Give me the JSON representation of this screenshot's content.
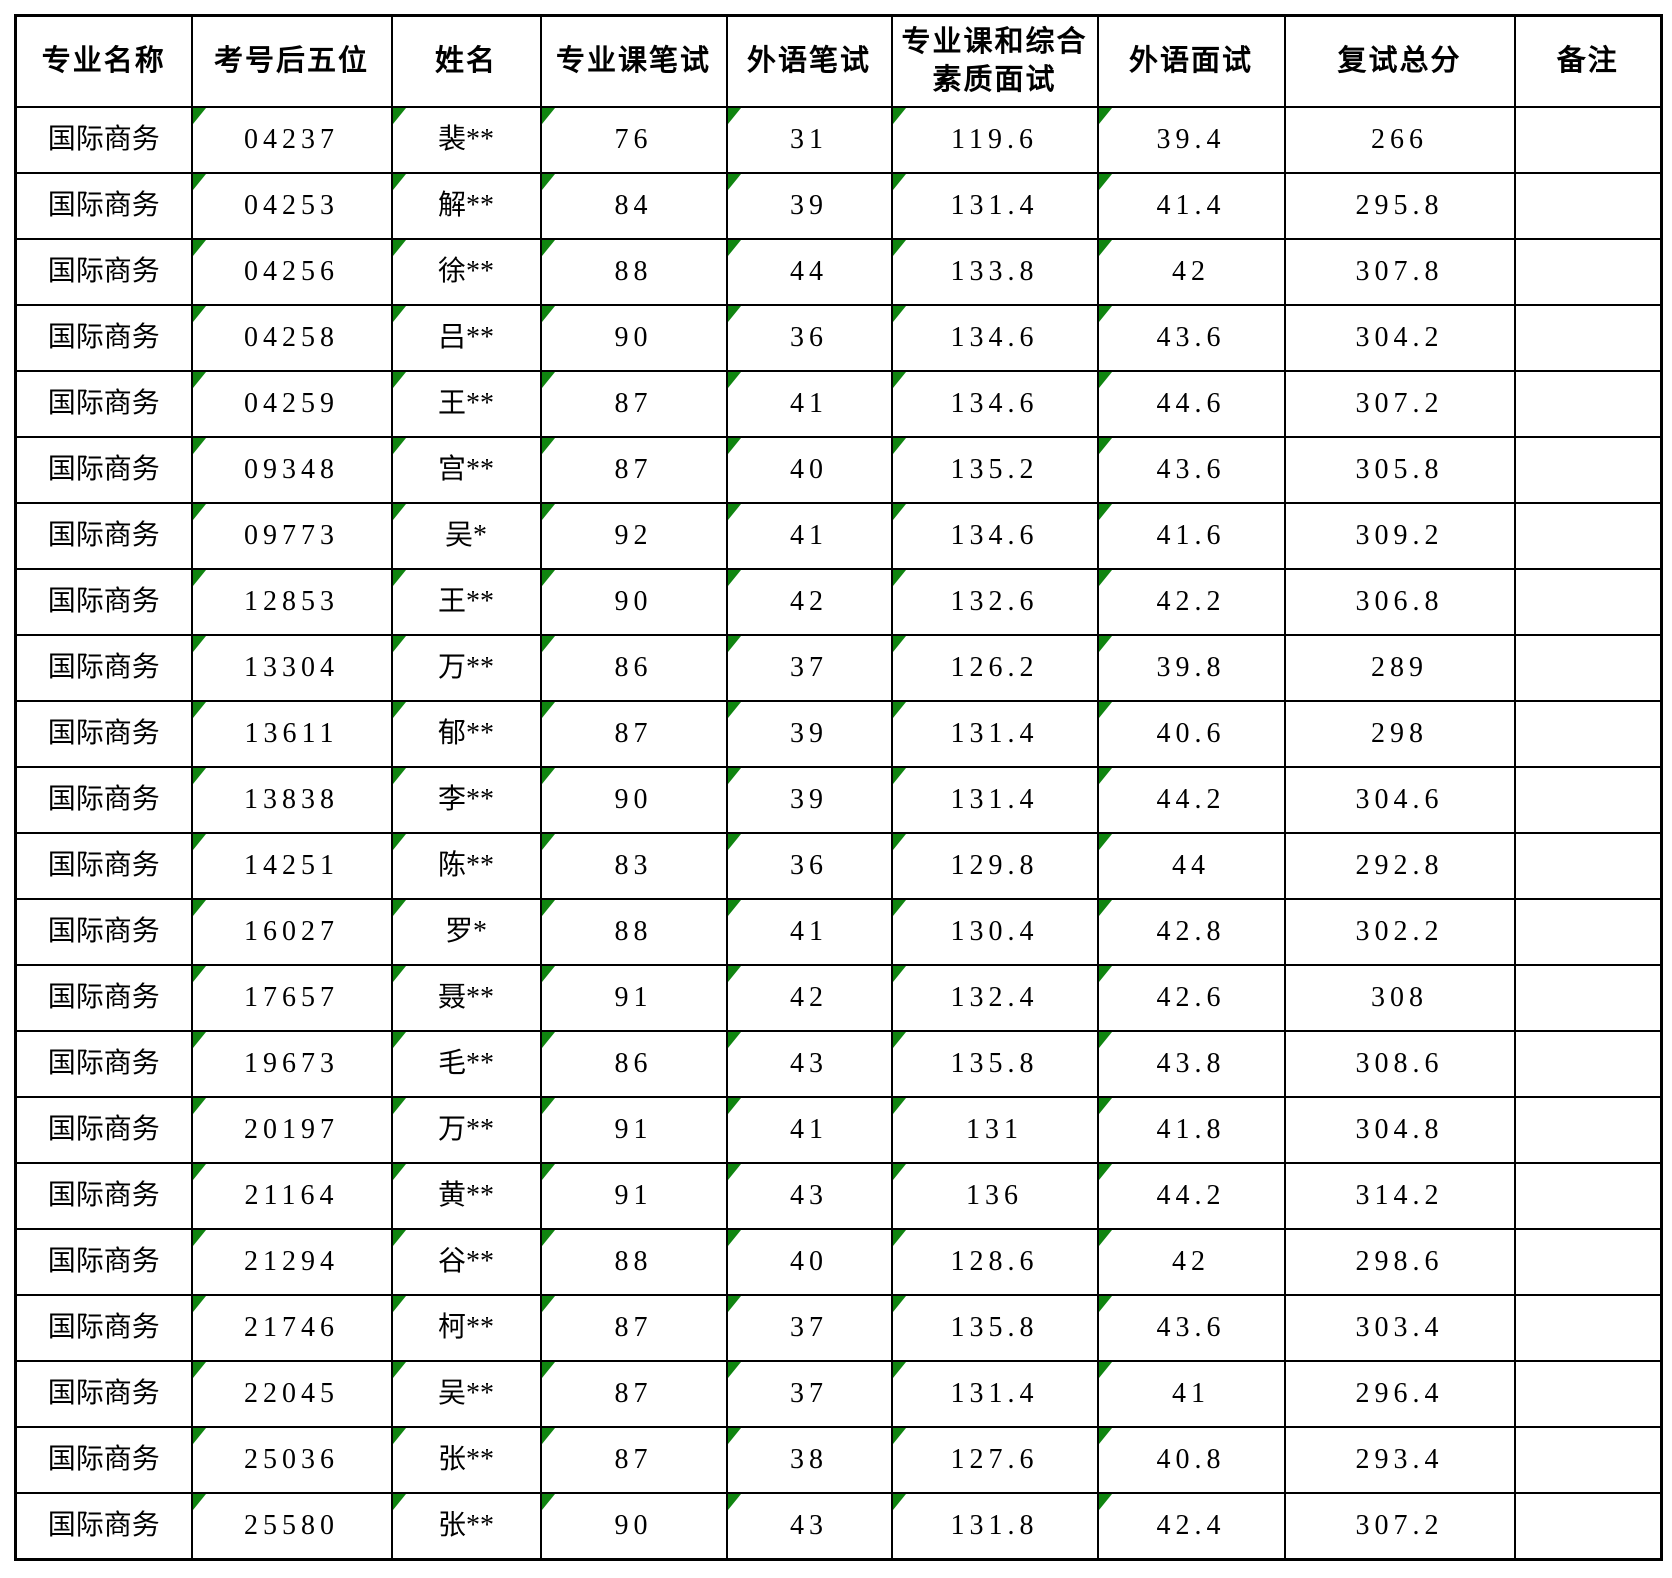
{
  "table": {
    "columns": [
      "专业名称",
      "考号后五位",
      "姓名",
      "专业课笔试",
      "外语笔试",
      "专业课和综合\n素质面试",
      "外语面试",
      "复试总分",
      "备注"
    ],
    "rows": [
      [
        "国际商务",
        "04237",
        "裴**",
        "76",
        "31",
        "119.6",
        "39.4",
        "266",
        ""
      ],
      [
        "国际商务",
        "04253",
        "解**",
        "84",
        "39",
        "131.4",
        "41.4",
        "295.8",
        ""
      ],
      [
        "国际商务",
        "04256",
        "徐**",
        "88",
        "44",
        "133.8",
        "42",
        "307.8",
        ""
      ],
      [
        "国际商务",
        "04258",
        "吕**",
        "90",
        "36",
        "134.6",
        "43.6",
        "304.2",
        ""
      ],
      [
        "国际商务",
        "04259",
        "王**",
        "87",
        "41",
        "134.6",
        "44.6",
        "307.2",
        ""
      ],
      [
        "国际商务",
        "09348",
        "宫**",
        "87",
        "40",
        "135.2",
        "43.6",
        "305.8",
        ""
      ],
      [
        "国际商务",
        "09773",
        "吴*",
        "92",
        "41",
        "134.6",
        "41.6",
        "309.2",
        ""
      ],
      [
        "国际商务",
        "12853",
        "王**",
        "90",
        "42",
        "132.6",
        "42.2",
        "306.8",
        ""
      ],
      [
        "国际商务",
        "13304",
        "万**",
        "86",
        "37",
        "126.2",
        "39.8",
        "289",
        ""
      ],
      [
        "国际商务",
        "13611",
        "郁**",
        "87",
        "39",
        "131.4",
        "40.6",
        "298",
        ""
      ],
      [
        "国际商务",
        "13838",
        "李**",
        "90",
        "39",
        "131.4",
        "44.2",
        "304.6",
        ""
      ],
      [
        "国际商务",
        "14251",
        "陈**",
        "83",
        "36",
        "129.8",
        "44",
        "292.8",
        ""
      ],
      [
        "国际商务",
        "16027",
        "罗*",
        "88",
        "41",
        "130.4",
        "42.8",
        "302.2",
        ""
      ],
      [
        "国际商务",
        "17657",
        "聂**",
        "91",
        "42",
        "132.4",
        "42.6",
        "308",
        ""
      ],
      [
        "国际商务",
        "19673",
        "毛**",
        "86",
        "43",
        "135.8",
        "43.8",
        "308.6",
        ""
      ],
      [
        "国际商务",
        "20197",
        "万**",
        "91",
        "41",
        "131",
        "41.8",
        "304.8",
        ""
      ],
      [
        "国际商务",
        "21164",
        "黄**",
        "91",
        "43",
        "136",
        "44.2",
        "314.2",
        ""
      ],
      [
        "国际商务",
        "21294",
        "谷**",
        "88",
        "40",
        "128.6",
        "42",
        "298.6",
        ""
      ],
      [
        "国际商务",
        "21746",
        "柯**",
        "87",
        "37",
        "135.8",
        "43.6",
        "303.4",
        ""
      ],
      [
        "国际商务",
        "22045",
        "吴**",
        "87",
        "37",
        "131.4",
        "41",
        "296.4",
        ""
      ],
      [
        "国际商务",
        "25036",
        "张**",
        "87",
        "38",
        "127.6",
        "40.8",
        "293.4",
        ""
      ],
      [
        "国际商务",
        "25580",
        "张**",
        "90",
        "43",
        "131.8",
        "42.4",
        "307.2",
        ""
      ]
    ],
    "indicator_triangle_columns": [
      1,
      2,
      3,
      4,
      5,
      6
    ]
  },
  "colors": {
    "grid": "#000000",
    "text": "#000000",
    "background": "#ffffff",
    "indicator_green": "#108510"
  }
}
